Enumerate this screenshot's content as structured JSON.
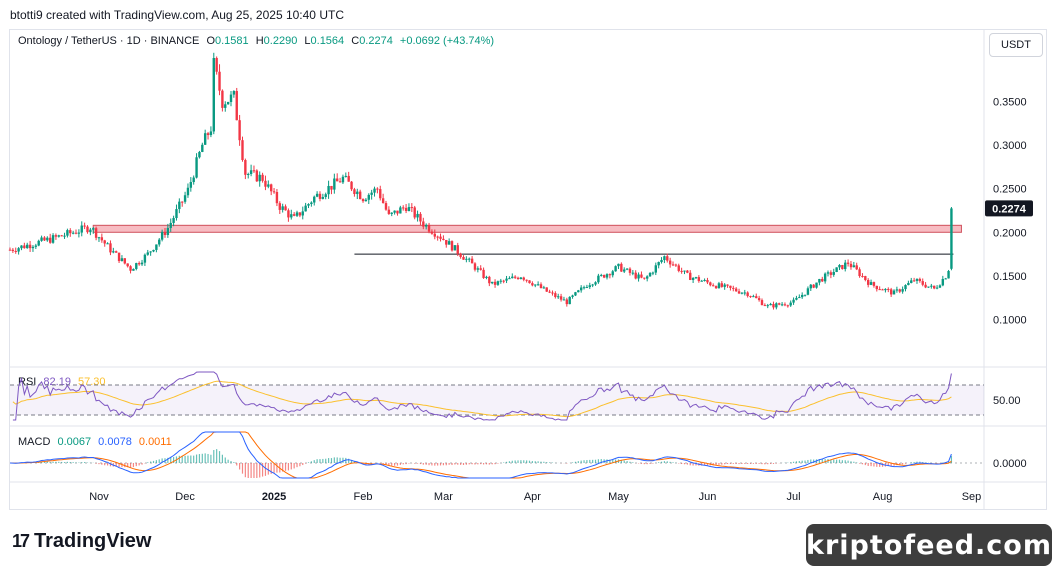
{
  "header": {
    "credit": "btotti9 created with TradingView.com, Aug 25, 2025 10:40 UTC"
  },
  "legend": {
    "symbol": "Ontology / TetherUS · 1D · BINANCE",
    "open_k": "O",
    "open": "0.1581",
    "high_k": "H",
    "high": "0.2290",
    "low_k": "L",
    "low": "0.1564",
    "close_k": "C",
    "close": "0.2274",
    "change": "+0.0692 (+43.74%)"
  },
  "currency_button": "USDT",
  "rsi_legend": {
    "name": "RSI",
    "value1": "82.19",
    "value2": "57.30"
  },
  "macd_legend": {
    "name": "MACD",
    "value1": "0.0067",
    "value2": "0.0078",
    "value3": "0.0011"
  },
  "brand": {
    "logo": "17",
    "name": "TradingView"
  },
  "watermark": "kriptofeed.com",
  "colors": {
    "up": "#089981",
    "down": "#f23645",
    "zone": "#f4a5ad",
    "rsi": "#7e57c2",
    "rsi_ma": "#fbc02d",
    "macd": "#2962ff",
    "signal": "#ff6d00"
  },
  "chart_data": {
    "type": "candlestick",
    "x_range": [
      "2024-10-01",
      "2025-09-05"
    ],
    "price_ylim": [
      0.05,
      0.4
    ],
    "y_ticks": [
      "0.3500",
      "0.3000",
      "0.2500",
      "0.2000",
      "0.1500",
      "0.1000"
    ],
    "x_ticks": [
      "Nov",
      "Dec",
      "2025",
      "Feb",
      "Mar",
      "Apr",
      "May",
      "Jun",
      "Jul",
      "Aug",
      "Sep"
    ],
    "current_price_label": "0.2274",
    "resistance_zone": {
      "from": "2024-10-30",
      "to": "2025-08-25",
      "low": 0.2,
      "high": 0.208
    },
    "horizontal_line": {
      "from": "2025-01-29",
      "to": "2025-08-25",
      "value": 0.175
    },
    "price_path": [
      [
        "2024-10-01",
        0.18
      ],
      [
        "2024-10-15",
        0.192
      ],
      [
        "2024-10-29",
        0.206
      ],
      [
        "2024-11-05",
        0.18
      ],
      [
        "2024-11-12",
        0.158
      ],
      [
        "2024-11-18",
        0.175
      ],
      [
        "2024-11-25",
        0.205
      ],
      [
        "2024-12-02",
        0.248
      ],
      [
        "2024-12-07",
        0.3
      ],
      [
        "2024-12-10",
        0.32
      ],
      [
        "2024-12-11",
        0.392
      ],
      [
        "2024-12-14",
        0.35
      ],
      [
        "2024-12-18",
        0.355
      ],
      [
        "2024-12-22",
        0.268
      ],
      [
        "2024-12-28",
        0.262
      ],
      [
        "2025-01-03",
        0.23
      ],
      [
        "2025-01-08",
        0.215
      ],
      [
        "2025-01-15",
        0.24
      ],
      [
        "2025-01-25",
        0.262
      ],
      [
        "2025-02-01",
        0.24
      ],
      [
        "2025-02-06",
        0.25
      ],
      [
        "2025-02-10",
        0.218
      ],
      [
        "2025-02-16",
        0.23
      ],
      [
        "2025-02-22",
        0.21
      ],
      [
        "2025-02-28",
        0.195
      ],
      [
        "2025-03-07",
        0.175
      ],
      [
        "2025-03-12",
        0.16
      ],
      [
        "2025-03-18",
        0.14
      ],
      [
        "2025-03-28",
        0.15
      ],
      [
        "2025-04-07",
        0.13
      ],
      [
        "2025-04-13",
        0.12
      ],
      [
        "2025-04-20",
        0.14
      ],
      [
        "2025-05-01",
        0.16
      ],
      [
        "2025-05-10",
        0.145
      ],
      [
        "2025-05-17",
        0.172
      ],
      [
        "2025-05-25",
        0.15
      ],
      [
        "2025-06-03",
        0.14
      ],
      [
        "2025-06-15",
        0.13
      ],
      [
        "2025-06-22",
        0.115
      ],
      [
        "2025-07-01",
        0.12
      ],
      [
        "2025-07-10",
        0.145
      ],
      [
        "2025-07-20",
        0.165
      ],
      [
        "2025-07-28",
        0.14
      ],
      [
        "2025-08-05",
        0.13
      ],
      [
        "2025-08-12",
        0.145
      ],
      [
        "2025-08-19",
        0.135
      ],
      [
        "2025-08-23",
        0.15
      ],
      [
        "2025-08-24",
        0.158
      ],
      [
        "2025-08-25",
        0.2274
      ]
    ]
  }
}
